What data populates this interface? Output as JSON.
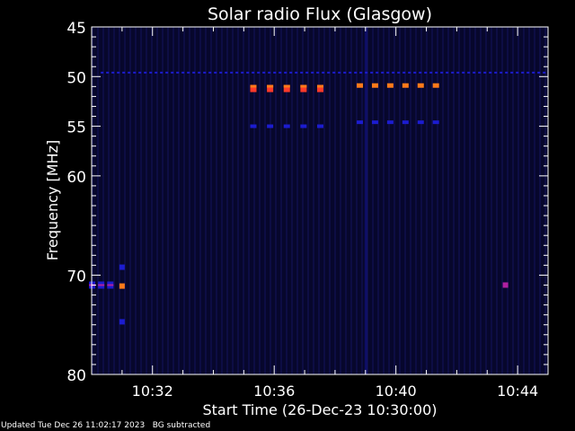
{
  "chart_data": {
    "type": "heatmap",
    "title": "Solar radio Flux (Glasgow)",
    "xlabel": "Start Time (26-Dec-23 10:30:00)",
    "ylabel": "Frequency [MHz]",
    "x_unit": "minutes",
    "xlim": [
      0,
      15
    ],
    "x_ticks": [
      {
        "value": 2,
        "label": "10:32"
      },
      {
        "value": 6,
        "label": "10:36"
      },
      {
        "value": 10,
        "label": "10:40"
      },
      {
        "value": 14,
        "label": "10:44"
      }
    ],
    "ylim": [
      45,
      80
    ],
    "y_ticks": [
      45,
      50,
      55,
      60,
      70,
      80
    ],
    "features": [
      {
        "kind": "hline",
        "freq": 49.6,
        "t0": 0.3,
        "t1": 15,
        "level": "low"
      },
      {
        "kind": "dashes",
        "freq": 51.2,
        "t0": 5.3,
        "t1": 7.5,
        "count": 5,
        "level": "high"
      },
      {
        "kind": "dashes",
        "freq": 55.0,
        "t0": 5.3,
        "t1": 7.5,
        "count": 5,
        "level": "low"
      },
      {
        "kind": "dashes",
        "freq": 50.9,
        "t0": 8.8,
        "t1": 11.3,
        "count": 6,
        "level": "med"
      },
      {
        "kind": "dashes",
        "freq": 54.6,
        "t0": 8.8,
        "t1": 11.3,
        "count": 6,
        "level": "low"
      },
      {
        "kind": "dashes",
        "freq": 71.0,
        "t0": 0.0,
        "t1": 0.6,
        "count": 3,
        "level": "mixed"
      },
      {
        "kind": "spot",
        "freq": 71.1,
        "t": 1.0,
        "level": "med"
      },
      {
        "kind": "spot",
        "freq": 69.2,
        "t": 1.0,
        "level": "low"
      },
      {
        "kind": "spot",
        "freq": 74.7,
        "t": 1.0,
        "level": "low"
      },
      {
        "kind": "spot",
        "freq": 71.0,
        "t": 13.6,
        "level": "mixed"
      },
      {
        "kind": "vline",
        "t": 9.0,
        "f0": 45,
        "f1": 80,
        "level": "low"
      }
    ],
    "colors": {
      "background": "#000000",
      "field": "#0b0b3a",
      "low": "#1c1ccf",
      "med": "#ff7a1a",
      "high": "#ff3a2a",
      "mixed": "#b020a0"
    }
  },
  "footer": "Updated Tue Dec 26 11:02:17 2023   BG subtracted"
}
